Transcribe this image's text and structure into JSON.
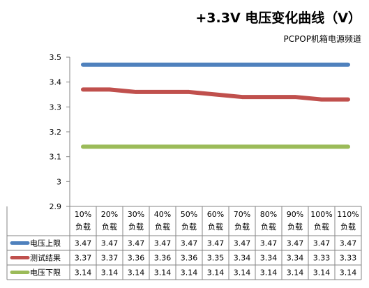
{
  "chart_data": {
    "type": "line",
    "title": "+3.3V 电压变化曲线（V）",
    "subtitle": "PCPOP机箱电源频道",
    "categories": [
      "10%负载",
      "20%负载",
      "30%负载",
      "40%负载",
      "50%负载",
      "60%负载",
      "70%负载",
      "80%负载",
      "90%负载",
      "100%负载",
      "110%负载"
    ],
    "category_lines": [
      [
        "10%",
        "负载"
      ],
      [
        "20%",
        "负载"
      ],
      [
        "30%",
        "负载"
      ],
      [
        "40%",
        "负载"
      ],
      [
        "50%",
        "负载"
      ],
      [
        "60%",
        "负载"
      ],
      [
        "70%",
        "负载"
      ],
      [
        "80%",
        "负载"
      ],
      [
        "90%",
        "负载"
      ],
      [
        "100%",
        "负载"
      ],
      [
        "110%",
        "负载"
      ]
    ],
    "ylim": [
      2.9,
      3.5
    ],
    "yticks": [
      "3.5",
      "3.4",
      "3.3",
      "3.2",
      "3.1",
      "3",
      "2.9"
    ],
    "ytick_values": [
      3.5,
      3.4,
      3.3,
      3.2,
      3.1,
      3.0,
      2.9
    ],
    "grid": false,
    "legend_position": "data table",
    "series": [
      {
        "name": "电压上限",
        "color": "#4f81bd",
        "values": [
          3.47,
          3.47,
          3.47,
          3.47,
          3.47,
          3.47,
          3.47,
          3.47,
          3.47,
          3.47,
          3.47
        ],
        "labels": [
          "3.47",
          "3.47",
          "3.47",
          "3.47",
          "3.47",
          "3.47",
          "3.47",
          "3.47",
          "3.47",
          "3.47",
          "3.47"
        ]
      },
      {
        "name": "测试结果",
        "color": "#c0504d",
        "values": [
          3.37,
          3.37,
          3.36,
          3.36,
          3.36,
          3.35,
          3.34,
          3.34,
          3.34,
          3.33,
          3.33
        ],
        "labels": [
          "3.37",
          "3.37",
          "3.36",
          "3.36",
          "3.36",
          "3.35",
          "3.34",
          "3.34",
          "3.34",
          "3.33",
          "3.33"
        ]
      },
      {
        "name": "电压下限",
        "color": "#9bbb59",
        "values": [
          3.14,
          3.14,
          3.14,
          3.14,
          3.14,
          3.14,
          3.14,
          3.14,
          3.14,
          3.14,
          3.14
        ],
        "labels": [
          "3.14",
          "3.14",
          "3.14",
          "3.14",
          "3.14",
          "3.14",
          "3.14",
          "3.14",
          "3.14",
          "3.14",
          "3.14"
        ]
      }
    ]
  }
}
